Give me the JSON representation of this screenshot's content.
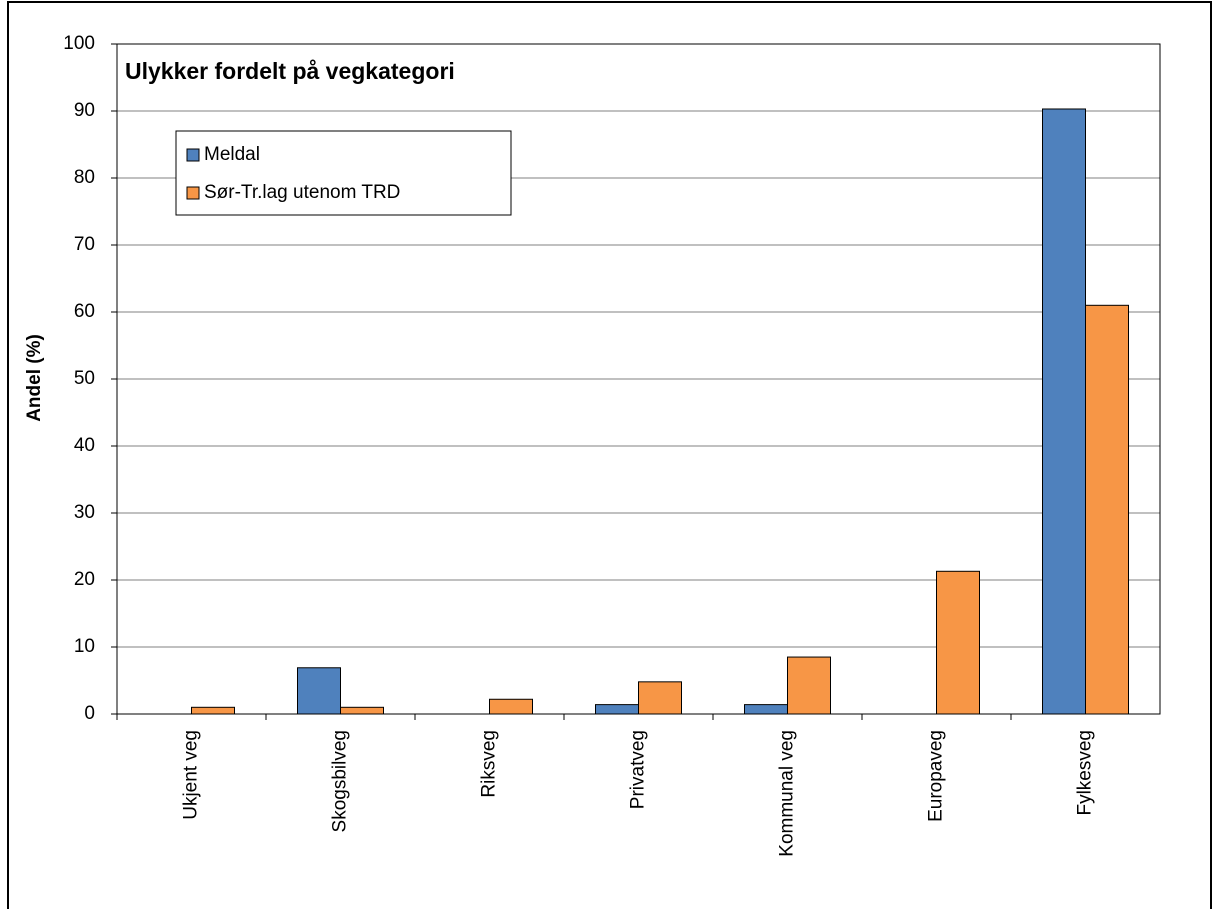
{
  "chart_data": {
    "type": "bar",
    "title": "Ulykker fordelt på vegkategori",
    "y_label": "Andel (%)",
    "categories": [
      "Ukjent veg",
      "Skogsbilveg",
      "Riksveg",
      "Privatveg",
      "Kommunal veg",
      "Europaveg",
      "Fylkesveg"
    ],
    "series": [
      {
        "name": "Meldal",
        "color": "#4f81bd",
        "values": [
          0,
          6.9,
          0,
          1.4,
          1.4,
          0,
          90.3
        ]
      },
      {
        "name": "Sør-Tr.lag utenom TRD",
        "color": "#f79646",
        "values": [
          1.0,
          1.0,
          2.2,
          4.8,
          8.5,
          21.3,
          61.0
        ]
      }
    ],
    "ylim": [
      0,
      100
    ],
    "yticks": [
      0,
      10,
      20,
      30,
      40,
      50,
      60,
      70,
      80,
      90,
      100
    ],
    "grid": true,
    "legend": "upper left"
  }
}
